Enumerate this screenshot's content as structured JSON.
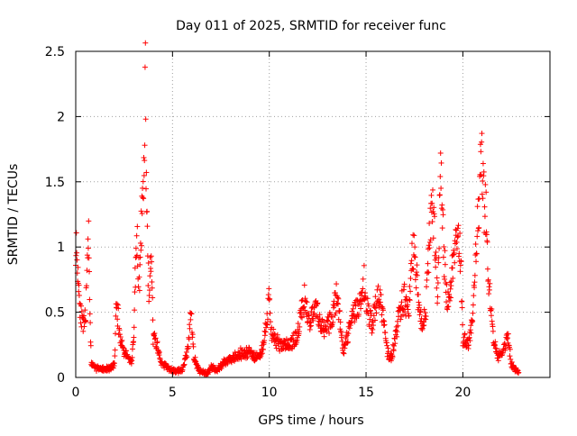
{
  "chart_data": {
    "type": "scatter",
    "title": "Day 011 of 2025, SRMTID for receiver func",
    "xlabel": "GPS time / hours",
    "ylabel": "SRMTID / TECUs",
    "xlim": [
      0,
      24.5
    ],
    "ylim": [
      0,
      2.5
    ],
    "x_ticks": [
      0,
      5,
      10,
      15,
      20
    ],
    "y_ticks": [
      0,
      0.5,
      1,
      1.5,
      2,
      2.5
    ],
    "x_tick_labels": [
      "0",
      "5",
      "10",
      "15",
      "20"
    ],
    "y_tick_labels": [
      "0",
      "0.5",
      "1",
      "1.5",
      "2",
      "2.5"
    ],
    "grid": true,
    "marker": "+",
    "color": "#ff0000",
    "series": [
      {
        "name": "SRMTID",
        "profile": [
          [
            0.0,
            1.05
          ],
          [
            0.1,
            0.85
          ],
          [
            0.2,
            0.6
          ],
          [
            0.3,
            0.45
          ],
          [
            0.4,
            0.38
          ],
          [
            0.5,
            0.45
          ],
          [
            0.6,
            0.8
          ],
          [
            0.65,
            1.2
          ],
          [
            0.7,
            0.85
          ],
          [
            0.75,
            0.4
          ],
          [
            0.8,
            0.1
          ],
          [
            1.0,
            0.08
          ],
          [
            1.5,
            0.06
          ],
          [
            1.8,
            0.07
          ],
          [
            2.0,
            0.1
          ],
          [
            2.1,
            0.55
          ],
          [
            2.2,
            0.45
          ],
          [
            2.3,
            0.3
          ],
          [
            2.5,
            0.2
          ],
          [
            2.7,
            0.15
          ],
          [
            2.9,
            0.12
          ],
          [
            3.0,
            0.35
          ],
          [
            3.1,
            0.92
          ],
          [
            3.2,
            1.0
          ],
          [
            3.3,
            0.65
          ],
          [
            3.4,
            1.2
          ],
          [
            3.5,
            1.4
          ],
          [
            3.55,
            1.82
          ],
          [
            3.6,
            2.2
          ],
          [
            3.65,
            1.45
          ],
          [
            3.7,
            1.0
          ],
          [
            3.8,
            0.6
          ],
          [
            3.9,
            1.0
          ],
          [
            4.0,
            0.3
          ],
          [
            4.2,
            0.25
          ],
          [
            4.4,
            0.12
          ],
          [
            4.7,
            0.08
          ],
          [
            5.0,
            0.05
          ],
          [
            5.5,
            0.05
          ],
          [
            5.8,
            0.22
          ],
          [
            5.95,
            0.55
          ],
          [
            6.1,
            0.15
          ],
          [
            6.4,
            0.05
          ],
          [
            6.8,
            0.03
          ],
          [
            7.0,
            0.08
          ],
          [
            7.3,
            0.05
          ],
          [
            7.6,
            0.1
          ],
          [
            8.0,
            0.15
          ],
          [
            8.5,
            0.18
          ],
          [
            9.0,
            0.2
          ],
          [
            9.3,
            0.15
          ],
          [
            9.6,
            0.2
          ],
          [
            9.9,
            0.45
          ],
          [
            10.0,
            0.62
          ],
          [
            10.1,
            0.35
          ],
          [
            10.5,
            0.25
          ],
          [
            11.0,
            0.25
          ],
          [
            11.4,
            0.3
          ],
          [
            11.6,
            0.45
          ],
          [
            11.8,
            0.6
          ],
          [
            12.1,
            0.4
          ],
          [
            12.3,
            0.55
          ],
          [
            12.5,
            0.5
          ],
          [
            12.8,
            0.35
          ],
          [
            13.2,
            0.45
          ],
          [
            13.5,
            0.65
          ],
          [
            13.8,
            0.2
          ],
          [
            14.1,
            0.35
          ],
          [
            14.4,
            0.5
          ],
          [
            14.7,
            0.55
          ],
          [
            14.9,
            0.72
          ],
          [
            15.1,
            0.5
          ],
          [
            15.3,
            0.4
          ],
          [
            15.5,
            0.55
          ],
          [
            15.7,
            0.62
          ],
          [
            15.9,
            0.45
          ],
          [
            16.1,
            0.2
          ],
          [
            16.3,
            0.15
          ],
          [
            16.5,
            0.3
          ],
          [
            16.8,
            0.55
          ],
          [
            17.0,
            0.6
          ],
          [
            17.2,
            0.45
          ],
          [
            17.3,
            0.8
          ],
          [
            17.5,
            1.05
          ],
          [
            17.7,
            0.55
          ],
          [
            17.9,
            0.4
          ],
          [
            18.1,
            0.55
          ],
          [
            18.3,
            1.15
          ],
          [
            18.5,
            1.25
          ],
          [
            18.7,
            0.6
          ],
          [
            18.85,
            1.58
          ],
          [
            19.0,
            1.0
          ],
          [
            19.2,
            0.6
          ],
          [
            19.5,
            0.85
          ],
          [
            19.7,
            1.2
          ],
          [
            19.9,
            0.9
          ],
          [
            20.0,
            0.3
          ],
          [
            20.3,
            0.25
          ],
          [
            20.5,
            0.45
          ],
          [
            20.7,
            0.95
          ],
          [
            20.85,
            1.4
          ],
          [
            20.95,
            1.7
          ],
          [
            21.05,
            1.4
          ],
          [
            21.2,
            1.25
          ],
          [
            21.3,
            0.8
          ],
          [
            21.45,
            0.5
          ],
          [
            21.6,
            0.3
          ],
          [
            21.8,
            0.15
          ],
          [
            22.0,
            0.2
          ],
          [
            22.2,
            0.25
          ],
          [
            22.35,
            0.3
          ],
          [
            22.5,
            0.1
          ],
          [
            22.7,
            0.06
          ],
          [
            22.9,
            0.05
          ]
        ]
      }
    ]
  }
}
